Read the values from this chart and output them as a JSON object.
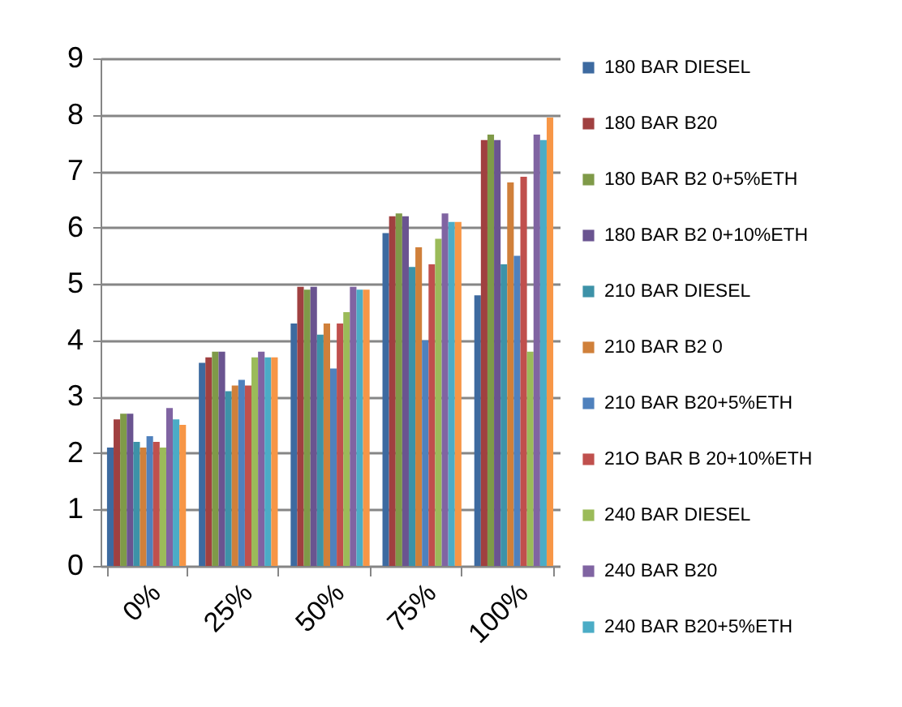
{
  "chart_data": {
    "type": "bar",
    "categories": [
      "0%",
      "25%",
      "50%",
      "75%",
      "100%"
    ],
    "series": [
      {
        "name": "180 BAR  DIESEL",
        "color": "#3d6aa0",
        "values": [
          2.1,
          3.6,
          4.3,
          5.9,
          4.8
        ]
      },
      {
        "name": " 180 BAR   B20",
        "color": "#a04040",
        "values": [
          2.6,
          3.7,
          4.95,
          6.2,
          7.55
        ]
      },
      {
        "name": "180 BAR B2 0+5%ETH",
        "color": "#7f9a48",
        "values": [
          2.7,
          3.8,
          4.9,
          6.25,
          7.65
        ]
      },
      {
        "name": "180 BAR B2 0+10%ETH",
        "color": "#6a5490",
        "values": [
          2.7,
          3.8,
          4.95,
          6.2,
          7.55
        ]
      },
      {
        "name": "210 BAR DIESEL",
        "color": "#3d92a8",
        "values": [
          2.2,
          3.1,
          4.1,
          5.3,
          5.35
        ]
      },
      {
        "name": "210 BAR B2 0",
        "color": "#d0803a",
        "values": [
          2.1,
          3.2,
          4.3,
          5.65,
          6.8
        ]
      },
      {
        "name": " 210 BAR B20+5%ETH",
        "color": "#4f81bd",
        "values": [
          2.3,
          3.3,
          3.5,
          4.0,
          5.5
        ]
      },
      {
        "name": " 21O BAR B 20+10%ETH",
        "color": "#c0504d",
        "values": [
          2.2,
          3.2,
          4.3,
          5.35,
          6.9
        ]
      },
      {
        "name": "  240 BAR DIESEL",
        "color": "#9bbb59",
        "values": [
          2.1,
          3.7,
          4.5,
          5.8,
          3.8
        ]
      },
      {
        "name": "240 BAR B20",
        "color": "#8064a2",
        "values": [
          2.8,
          3.8,
          4.95,
          6.25,
          7.65
        ]
      },
      {
        "name": "240 BAR B20+5%ETH",
        "color": "#4bacc6",
        "values": [
          2.6,
          3.7,
          4.9,
          6.1,
          7.55
        ]
      },
      {
        "color": "#f79646",
        "values": [
          2.5,
          3.7,
          4.9,
          6.1,
          7.95
        ]
      }
    ],
    "ylim": [
      0,
      9
    ],
    "yticks": [
      0,
      1,
      2,
      3,
      4,
      5,
      6,
      7,
      8,
      9
    ],
    "grid": "y",
    "legend": "right"
  }
}
